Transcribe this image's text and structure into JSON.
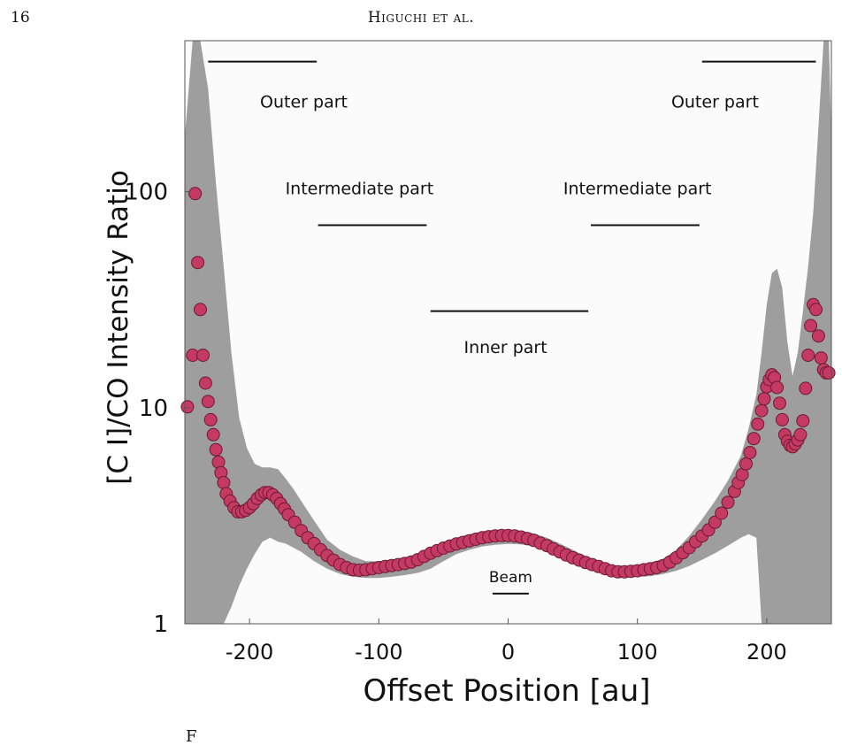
{
  "page": {
    "page_number": "16",
    "running_header": "Higuchi et al."
  },
  "colors": {
    "marker_fill": "#c43a62",
    "marker_edge": "#6e1a35",
    "error_band": "#9e9e9e",
    "plot_background": "#fbfbfb"
  },
  "chart_data": {
    "type": "scatter",
    "title": "",
    "xlabel": "Offset Position [au]",
    "ylabel": "[C I]/CO Intensity Ratio",
    "xlim": [
      -250,
      250
    ],
    "ylim": [
      1,
      500
    ],
    "yscale": "log",
    "x_ticks": [
      -200,
      -100,
      0,
      100,
      200
    ],
    "x_tick_labels": [
      "-200",
      "-100",
      "0",
      "100",
      "200"
    ],
    "y_ticks": [
      1,
      10,
      100
    ],
    "y_tick_labels": [
      "1",
      "10",
      "100"
    ],
    "grid": false,
    "legend": null,
    "series": [
      {
        "marker": "circle",
        "x": [
          -248,
          -244,
          -242,
          -240,
          -238,
          -236,
          -234,
          -232,
          -230,
          -228,
          -226,
          -224,
          -222,
          -220,
          -218,
          -215,
          -212,
          -209,
          -206,
          -203,
          -200,
          -197,
          -194,
          -191,
          -188,
          -185,
          -182,
          -179,
          -176,
          -173,
          -170,
          -165,
          -160,
          -155,
          -150,
          -145,
          -140,
          -135,
          -130,
          -125,
          -120,
          -115,
          -110,
          -105,
          -100,
          -95,
          -90,
          -85,
          -80,
          -75,
          -70,
          -65,
          -60,
          -55,
          -50,
          -45,
          -40,
          -35,
          -30,
          -25,
          -20,
          -15,
          -10,
          -5,
          0,
          5,
          10,
          15,
          20,
          25,
          30,
          35,
          40,
          45,
          50,
          55,
          60,
          65,
          70,
          75,
          80,
          85,
          90,
          95,
          100,
          105,
          110,
          115,
          120,
          125,
          130,
          135,
          140,
          145,
          150,
          155,
          160,
          165,
          170,
          175,
          178,
          181,
          184,
          187,
          190,
          193,
          196,
          198,
          200,
          202,
          204,
          206,
          208,
          210,
          212,
          214,
          216,
          218,
          220,
          222,
          224,
          226,
          228,
          230,
          232,
          234,
          236,
          238,
          240,
          242,
          244,
          246,
          248
        ],
        "y": [
          10.1,
          17.5,
          98,
          47,
          28.5,
          17.5,
          13.0,
          10.7,
          8.8,
          7.5,
          6.4,
          5.6,
          5.0,
          4.5,
          4.0,
          3.7,
          3.45,
          3.3,
          3.3,
          3.35,
          3.45,
          3.6,
          3.8,
          3.95,
          4.05,
          4.05,
          3.95,
          3.8,
          3.6,
          3.4,
          3.2,
          2.95,
          2.7,
          2.5,
          2.35,
          2.2,
          2.07,
          1.97,
          1.88,
          1.82,
          1.78,
          1.77,
          1.78,
          1.8,
          1.82,
          1.84,
          1.86,
          1.88,
          1.9,
          1.93,
          1.98,
          2.05,
          2.12,
          2.18,
          2.24,
          2.29,
          2.34,
          2.38,
          2.42,
          2.46,
          2.5,
          2.53,
          2.55,
          2.56,
          2.56,
          2.55,
          2.52,
          2.48,
          2.43,
          2.36,
          2.3,
          2.22,
          2.15,
          2.08,
          2.02,
          1.97,
          1.92,
          1.88,
          1.84,
          1.8,
          1.76,
          1.74,
          1.74,
          1.75,
          1.76,
          1.78,
          1.8,
          1.82,
          1.86,
          1.93,
          2.02,
          2.13,
          2.25,
          2.4,
          2.55,
          2.72,
          2.95,
          3.25,
          3.65,
          4.1,
          4.5,
          4.9,
          5.5,
          6.2,
          7.2,
          8.4,
          9.7,
          11.0,
          12.5,
          13.5,
          14.2,
          13.8,
          12.4,
          10.5,
          8.8,
          7.5,
          7.0,
          6.7,
          6.6,
          6.8,
          7.1,
          7.5,
          8.7,
          12.3,
          17.5,
          24.0,
          30.0,
          28.5,
          21.5,
          17.0,
          15.0,
          14.5,
          14.5
        ]
      }
    ],
    "error_band": {
      "x": [
        -250,
        -244,
        -238,
        -232,
        -226,
        -220,
        -214,
        -208,
        -202,
        -196,
        -190,
        -184,
        -178,
        -172,
        -166,
        -160,
        -150,
        -140,
        -130,
        -120,
        -110,
        -100,
        -90,
        -80,
        -70,
        -60,
        -50,
        -40,
        -30,
        -20,
        -10,
        0,
        10,
        20,
        30,
        40,
        50,
        60,
        70,
        80,
        90,
        100,
        110,
        120,
        130,
        140,
        150,
        160,
        170,
        180,
        186,
        192,
        196,
        200,
        204,
        208,
        212,
        216,
        220,
        224,
        228,
        232,
        236,
        240,
        244,
        248,
        250
      ],
      "upper": [
        180,
        500,
        500,
        300,
        110,
        45,
        18,
        9.0,
        6.5,
        5.5,
        5.3,
        5.3,
        5.2,
        4.7,
        4.2,
        3.7,
        3.0,
        2.45,
        2.2,
        2.05,
        1.95,
        1.95,
        1.98,
        2.02,
        2.08,
        2.2,
        2.35,
        2.5,
        2.6,
        2.68,
        2.72,
        2.72,
        2.7,
        2.62,
        2.5,
        2.35,
        2.2,
        2.05,
        1.95,
        1.87,
        1.85,
        1.87,
        1.92,
        2.0,
        2.2,
        2.55,
        3.05,
        3.7,
        4.6,
        6.0,
        8.0,
        11.5,
        18,
        30,
        42,
        44,
        36,
        20,
        14,
        18,
        28,
        45,
        80,
        200,
        500,
        500,
        180
      ],
      "lower": [
        1,
        1,
        1,
        1,
        1,
        1,
        1.2,
        1.5,
        1.8,
        2.1,
        2.4,
        2.5,
        2.4,
        2.35,
        2.25,
        2.15,
        1.95,
        1.8,
        1.7,
        1.65,
        1.63,
        1.63,
        1.65,
        1.68,
        1.72,
        1.8,
        1.95,
        2.1,
        2.2,
        2.28,
        2.32,
        2.34,
        2.33,
        2.28,
        2.18,
        2.05,
        1.93,
        1.83,
        1.76,
        1.7,
        1.66,
        1.65,
        1.66,
        1.7,
        1.76,
        1.85,
        1.98,
        2.12,
        2.3,
        2.5,
        2.6,
        2.5,
        1,
        1,
        1,
        1,
        1,
        1,
        1,
        1,
        1,
        1,
        1,
        1,
        1,
        1,
        1
      ]
    },
    "annotations": [
      {
        "text": "Outer part",
        "y": 400,
        "x_range": [
          -232,
          -148
        ],
        "label_x": -158,
        "label_y": 260
      },
      {
        "text": "Outer part",
        "y": 400,
        "x_range": [
          150,
          238
        ],
        "label_x": 160,
        "label_y": 260
      },
      {
        "text": "Intermediate part",
        "y": 70,
        "x_range": [
          -147,
          -63
        ],
        "label_x": -115,
        "label_y": 103
      },
      {
        "text": "Intermediate part",
        "y": 70,
        "x_range": [
          64,
          148
        ],
        "label_x": 100,
        "label_y": 103
      },
      {
        "text": "Inner part",
        "y": 28,
        "x_range": [
          -60,
          62
        ],
        "label_x": -2,
        "label_y": 19
      },
      {
        "text": "Beam",
        "y": 1.38,
        "x_range": [
          -12,
          16
        ],
        "label_x": 2,
        "label_y": 1.65
      }
    ]
  },
  "caption_fragment": "F"
}
